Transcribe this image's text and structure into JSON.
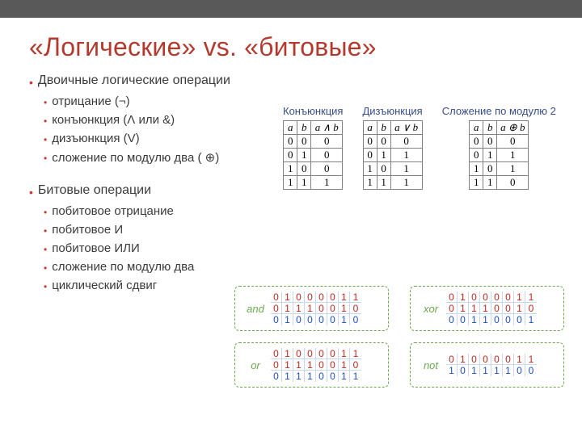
{
  "title": {
    "text": "«Логические» vs. «битовые»",
    "color": "#b43a2e"
  },
  "sections": [
    {
      "heading": "Двоичные логические операции",
      "items": [
        "отрицание (¬)",
        "конъюнкция (Ʌ или &)",
        "дизъюнкция (V)",
        "сложение по модулю два ( ⊕)"
      ]
    },
    {
      "heading": "Битовые операции",
      "items": [
        "побитовое отрицание",
        "побитовое И",
        "побитовое ИЛИ",
        "сложение по модулю два",
        "циклический сдвиг"
      ]
    }
  ],
  "truth": [
    {
      "title": "Конъюнкция",
      "op": "a ∧ b",
      "rows": [
        [
          "0",
          "0",
          "0"
        ],
        [
          "0",
          "1",
          "0"
        ],
        [
          "1",
          "0",
          "0"
        ],
        [
          "1",
          "1",
          "1"
        ]
      ]
    },
    {
      "title": "Дизъюнкция",
      "op": "a ∨ b",
      "rows": [
        [
          "0",
          "0",
          "0"
        ],
        [
          "0",
          "1",
          "1"
        ],
        [
          "1",
          "0",
          "1"
        ],
        [
          "1",
          "1",
          "1"
        ]
      ]
    },
    {
      "title": "Сложение по модулю 2",
      "op": "a ⊕ b",
      "rows": [
        [
          "0",
          "0",
          "0"
        ],
        [
          "0",
          "1",
          "1"
        ],
        [
          "1",
          "0",
          "1"
        ],
        [
          "1",
          "1",
          "0"
        ]
      ]
    }
  ],
  "bitwise": [
    {
      "name": "and",
      "type": "three",
      "a": [
        "0",
        "1",
        "0",
        "0",
        "0",
        "0",
        "1",
        "1"
      ],
      "b": [
        "0",
        "1",
        "1",
        "1",
        "0",
        "0",
        "1",
        "0"
      ],
      "r": [
        "0",
        "1",
        "0",
        "0",
        "0",
        "0",
        "1",
        "0"
      ]
    },
    {
      "name": "xor",
      "type": "three",
      "a": [
        "0",
        "1",
        "0",
        "0",
        "0",
        "0",
        "1",
        "1"
      ],
      "b": [
        "0",
        "1",
        "1",
        "1",
        "0",
        "0",
        "1",
        "0"
      ],
      "r": [
        "0",
        "0",
        "1",
        "1",
        "0",
        "0",
        "0",
        "1"
      ]
    },
    {
      "name": "or",
      "type": "three",
      "a": [
        "0",
        "1",
        "0",
        "0",
        "0",
        "0",
        "1",
        "1"
      ],
      "b": [
        "0",
        "1",
        "1",
        "1",
        "0",
        "0",
        "1",
        "0"
      ],
      "r": [
        "0",
        "1",
        "1",
        "1",
        "0",
        "0",
        "1",
        "1"
      ]
    },
    {
      "name": "not",
      "type": "two",
      "a": [
        "0",
        "1",
        "0",
        "0",
        "0",
        "0",
        "1",
        "1"
      ],
      "r": [
        "1",
        "0",
        "1",
        "1",
        "1",
        "1",
        "0",
        "0"
      ]
    }
  ],
  "colors": {
    "bullet": "#c43c2f",
    "truth_head": "#384d8a",
    "bit_border": "#6aa84f",
    "bit_red": "#bb2a1f",
    "bit_blue": "#1f4fbf"
  }
}
